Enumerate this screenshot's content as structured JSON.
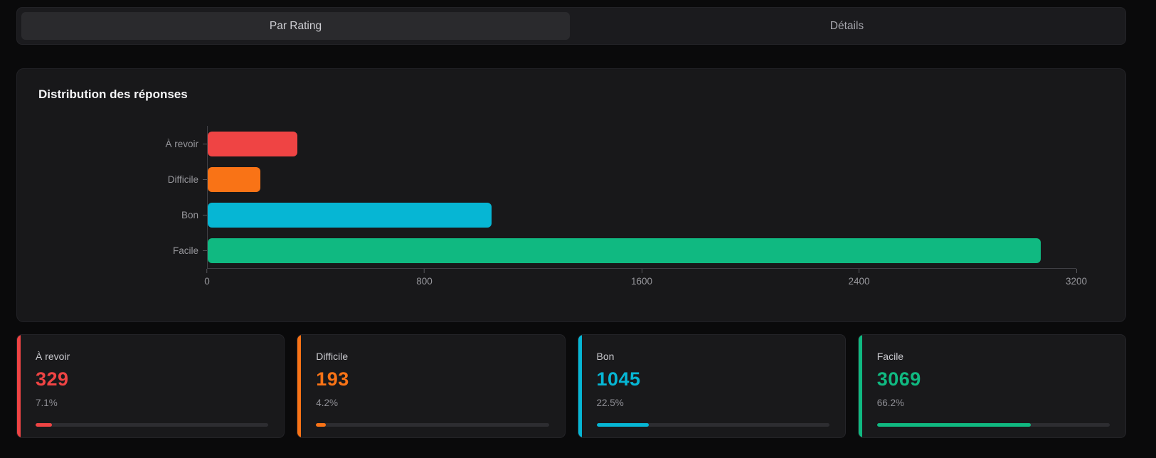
{
  "tabs": {
    "items": [
      {
        "label": "Par Rating",
        "selected": true
      },
      {
        "label": "Détails",
        "selected": false
      }
    ]
  },
  "chart": {
    "title": "Distribution des réponses"
  },
  "chart_data": {
    "type": "bar",
    "orientation": "horizontal",
    "title": "Distribution des réponses",
    "categories": [
      "À revoir",
      "Difficile",
      "Bon",
      "Facile"
    ],
    "values": [
      329,
      193,
      1045,
      3069
    ],
    "colors": [
      "#ef4444",
      "#f97316",
      "#06b6d4",
      "#10b981"
    ],
    "xlabel": "",
    "ylabel": "",
    "xlim": [
      0,
      3200
    ],
    "xticks": [
      0,
      800,
      1600,
      2400,
      3200
    ],
    "grid": false,
    "legend": false
  },
  "stat_cards": [
    {
      "label": "À revoir",
      "value": "329",
      "percent": "7.1%",
      "percent_value": 7.1,
      "color": "#ef4444"
    },
    {
      "label": "Difficile",
      "value": "193",
      "percent": "4.2%",
      "percent_value": 4.2,
      "color": "#f97316"
    },
    {
      "label": "Bon",
      "value": "1045",
      "percent": "22.5%",
      "percent_value": 22.5,
      "color": "#06b6d4"
    },
    {
      "label": "Facile",
      "value": "3069",
      "percent": "66.2%",
      "percent_value": 66.2,
      "color": "#10b981"
    }
  ]
}
